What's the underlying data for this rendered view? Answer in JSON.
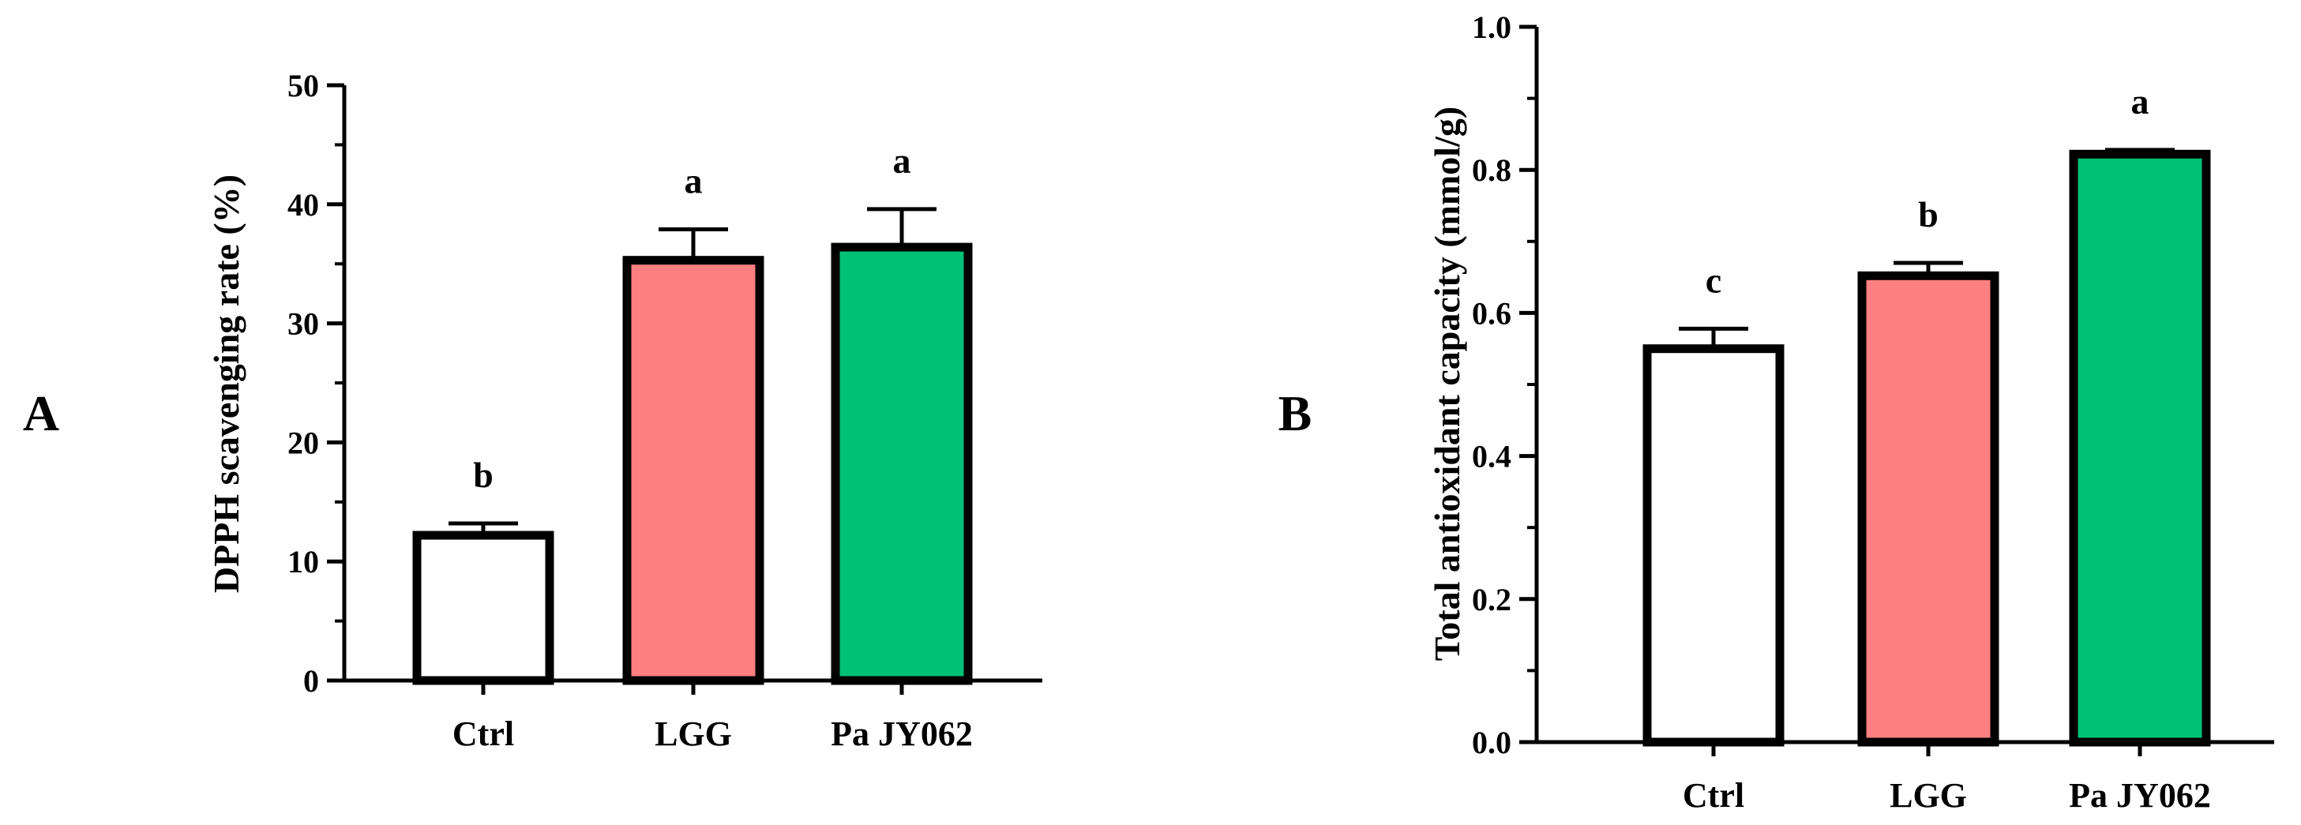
{
  "colors": {
    "Ctrl": "#ffffff",
    "LGG": "#ff8080",
    "Pa JY062": "#00c176",
    "stroke": "#000000"
  },
  "chart_data": [
    {
      "type": "bar",
      "panel_label": "A",
      "ylabel": "DPPH scavenging rate (%)",
      "ylim": [
        0,
        50
      ],
      "yticks": [
        0,
        10,
        20,
        30,
        40,
        50
      ],
      "tick_labels": [
        "0",
        "10",
        "20",
        "30",
        "40",
        "50"
      ],
      "categories": [
        "Ctrl",
        "LGG",
        "Pa JY062"
      ],
      "values": [
        12.2,
        35.3,
        36.4
      ],
      "errors": [
        1.0,
        2.6,
        3.2
      ],
      "significance": [
        "b",
        "a",
        "a"
      ],
      "grid": false,
      "legend": "none"
    },
    {
      "type": "bar",
      "panel_label": "B",
      "ylabel": "Total antioxidant capacity (mmol/g)",
      "ylim": [
        0,
        1.0
      ],
      "yticks": [
        0,
        0.2,
        0.4,
        0.6,
        0.8,
        1.0
      ],
      "tick_labels": [
        "0.0",
        "0.2",
        "0.4",
        "0.6",
        "0.8",
        "1.0"
      ],
      "categories": [
        "Ctrl",
        "LGG",
        "Pa JY062"
      ],
      "values": [
        0.55,
        0.652,
        0.822
      ],
      "errors": [
        0.028,
        0.018,
        0.006
      ],
      "significance": [
        "c",
        "b",
        "a"
      ],
      "grid": false,
      "legend": "none"
    }
  ]
}
